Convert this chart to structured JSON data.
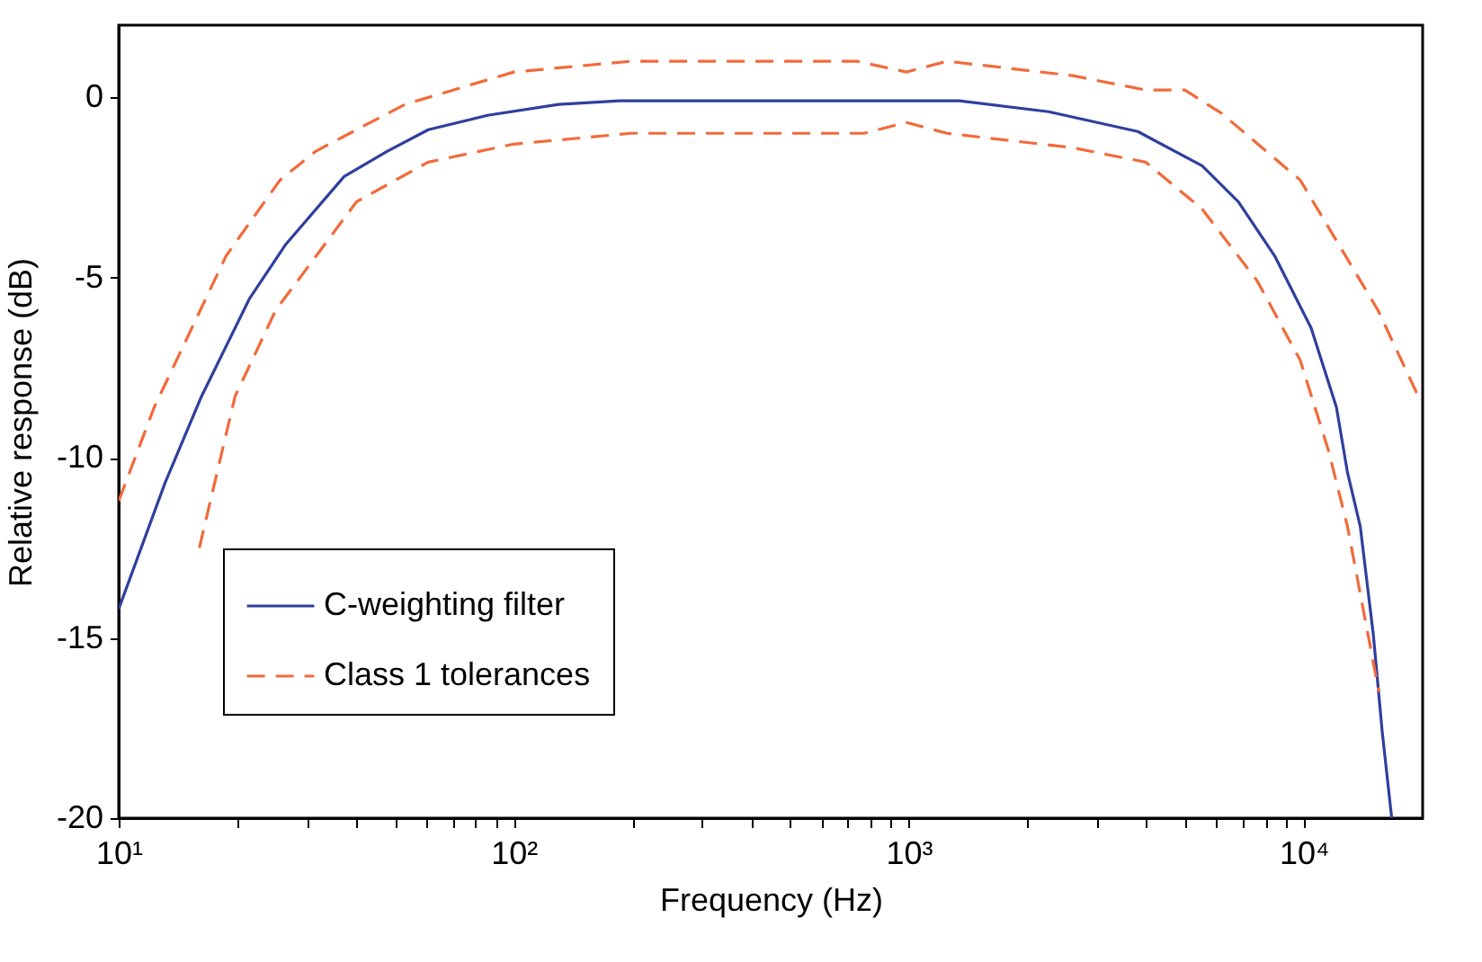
{
  "chart_data": {
    "type": "line",
    "xlabel": "Frequency (Hz)",
    "ylabel": "Relative response (dB)",
    "log": "x",
    "xlim": [
      10,
      20000
    ],
    "ylim": [
      -20,
      2
    ],
    "xticks": [
      {
        "value": 10,
        "label": "10¹"
      },
      {
        "value": 20,
        "label": null
      },
      {
        "value": 30,
        "label": null
      },
      {
        "value": 40,
        "label": null
      },
      {
        "value": 50,
        "label": null
      },
      {
        "value": 60,
        "label": null
      },
      {
        "value": 70,
        "label": null
      },
      {
        "value": 80,
        "label": null
      },
      {
        "value": 90,
        "label": null
      },
      {
        "value": 100,
        "label": "10²"
      },
      {
        "value": 200,
        "label": null
      },
      {
        "value": 300,
        "label": null
      },
      {
        "value": 400,
        "label": null
      },
      {
        "value": 500,
        "label": null
      },
      {
        "value": 600,
        "label": null
      },
      {
        "value": 700,
        "label": null
      },
      {
        "value": 800,
        "label": null
      },
      {
        "value": 900,
        "label": null
      },
      {
        "value": 1000,
        "label": "10³"
      },
      {
        "value": 2000,
        "label": null
      },
      {
        "value": 3000,
        "label": null
      },
      {
        "value": 4000,
        "label": null
      },
      {
        "value": 5000,
        "label": null
      },
      {
        "value": 6000,
        "label": null
      },
      {
        "value": 7000,
        "label": null
      },
      {
        "value": 8000,
        "label": null
      },
      {
        "value": 9000,
        "label": null
      },
      {
        "value": 10000,
        "label": "10⁴"
      }
    ],
    "yticks": [
      -20,
      -15,
      -10,
      -5,
      0
    ],
    "grid": false,
    "legend": "bottom left",
    "marker": "none",
    "series": [
      {
        "name": "C-weighting filter",
        "color": "#2f3f9e",
        "line_style": "solid",
        "x": [
          10,
          13.1,
          16.2,
          21.4,
          26.4,
          37.2,
          47.8,
          60.8,
          85.9,
          130,
          185,
          1344,
          2260,
          3800,
          5530,
          6830,
          8440,
          10440,
          12100,
          12900,
          13900,
          15000,
          15800,
          16700
        ],
        "values": [
          -14.2,
          -10.7,
          -8.3,
          -5.6,
          -4.1,
          -2.2,
          -1.5,
          -0.9,
          -0.5,
          -0.2,
          -0.1,
          -0.1,
          -0.4,
          -0.95,
          -1.9,
          -2.9,
          -4.4,
          -6.4,
          -8.6,
          -10.4,
          -11.9,
          -14.9,
          -17.6,
          -20
        ]
      },
      {
        "name": "Class 1 tolerances",
        "color": "#f26a3a",
        "line_style": "dashed",
        "x": [
          10,
          12.3,
          18.7,
          25.6,
          31.5,
          40,
          53,
          100,
          198,
          740,
          986,
          1250,
          2600,
          3980,
          5000,
          6200,
          9800,
          15400,
          19500
        ],
        "values": [
          -11.2,
          -8.6,
          -4.4,
          -2.3,
          -1.5,
          -0.9,
          -0.2,
          0.7,
          1.0,
          1.0,
          0.7,
          1.0,
          0.6,
          0.2,
          0.2,
          -0.45,
          -2.3,
          -5.9,
          -8.3
        ]
      },
      {
        "color": "#f26a3a",
        "line_style": "dashed",
        "x": [
          16,
          19.7,
          25,
          40,
          60.7,
          100,
          198,
          770,
          986,
          1250,
          2600,
          3980,
          5530,
          7630,
          9800,
          11550,
          12900,
          15500
        ],
        "values": [
          -12.5,
          -8.3,
          -5.9,
          -2.9,
          -1.8,
          -1.3,
          -1.0,
          -1.0,
          -0.7,
          -1.0,
          -1.4,
          -1.8,
          -3.1,
          -5.1,
          -7.3,
          -9.8,
          -11.9,
          -16.5
        ]
      }
    ]
  }
}
